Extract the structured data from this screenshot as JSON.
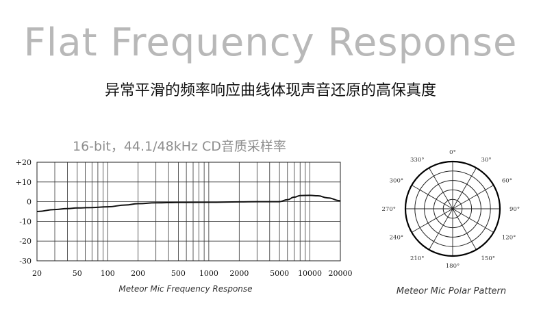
{
  "headline": "Flat Frequency Response",
  "subheadline": "异常平滑的频率响应曲线体现声音还原的高保真度",
  "spec": "16-bit，44.1/48kHz CD音质采样率",
  "chart_data": [
    {
      "type": "line",
      "title": "Meteor Mic Frequency Response",
      "xscale": "log",
      "xlim": [
        20,
        20000
      ],
      "ylim": [
        -30,
        20
      ],
      "xticks": [
        20,
        50,
        100,
        200,
        500,
        1000,
        2000,
        5000,
        10000,
        20000
      ],
      "xtick_labels": [
        "20",
        "50",
        "100",
        "200",
        "500",
        "1000",
        "2000",
        "5000",
        "10000",
        "20000"
      ],
      "yticks": [
        20,
        10,
        0,
        -10,
        -20,
        -30
      ],
      "ytick_labels": [
        "+20",
        "+10",
        "0",
        "-10",
        "-20",
        "-30"
      ],
      "grid": true,
      "series": [
        {
          "x": [
            20,
            30,
            40,
            50,
            70,
            100,
            150,
            200,
            300,
            500,
            1000,
            2000,
            3000,
            5000,
            6000,
            7000,
            8000,
            10000,
            12000,
            15000,
            20000
          ],
          "y": [
            -5,
            -4,
            -3.5,
            -3.2,
            -3,
            -2.6,
            -1.7,
            -1,
            -0.6,
            -0.4,
            -0.3,
            -0.1,
            0,
            0,
            1,
            2.3,
            3.1,
            3.2,
            3,
            1.9,
            0.5
          ]
        }
      ]
    },
    {
      "type": "polar",
      "title": "Meteor Mic Polar Pattern",
      "angle_labels": [
        "0°",
        "30°",
        "60°",
        "90°",
        "120°",
        "150°",
        "180°",
        "210°",
        "240°",
        "270°",
        "300°",
        "330°"
      ],
      "pattern": "omnidirectional"
    }
  ]
}
